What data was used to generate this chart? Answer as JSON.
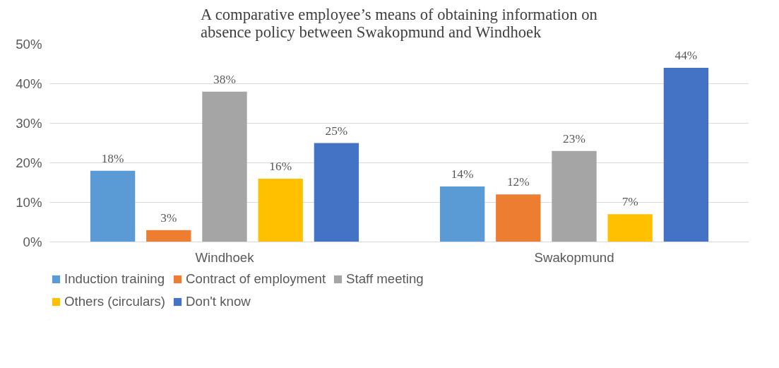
{
  "chart_data": {
    "type": "bar",
    "title": "A comparative employee’s means of obtaining information on absence policy between Swakopmund and Windhoek",
    "categories": [
      "Windhoek",
      "Swakopmund"
    ],
    "series": [
      {
        "name": "Induction training",
        "color": "#5b9bd5",
        "values": [
          18,
          14
        ],
        "value_labels": [
          "18%",
          "14%"
        ]
      },
      {
        "name": "Contract of employment",
        "color": "#ed7d31",
        "values": [
          3,
          12
        ],
        "value_labels": [
          "3%",
          "12%"
        ]
      },
      {
        "name": "Staff meeting",
        "color": "#a5a5a5",
        "values": [
          38,
          23
        ],
        "value_labels": [
          "38%",
          "23%"
        ]
      },
      {
        "name": "Others (circulars)",
        "color": "#ffc000",
        "values": [
          16,
          7
        ],
        "value_labels": [
          "16%",
          "7%"
        ]
      },
      {
        "name": "Don't know",
        "color": "#4472c4",
        "values": [
          25,
          44
        ],
        "value_labels": [
          "25%",
          "44%"
        ]
      }
    ],
    "ylim": [
      0,
      50
    ],
    "yticks": [
      {
        "value": 0,
        "label": "0%"
      },
      {
        "value": 10,
        "label": "10%"
      },
      {
        "value": 20,
        "label": "20%"
      },
      {
        "value": 30,
        "label": "30%"
      },
      {
        "value": 40,
        "label": "40%"
      },
      {
        "value": 50,
        "label": "50%"
      }
    ],
    "grid": "y",
    "legend": "bottom"
  }
}
